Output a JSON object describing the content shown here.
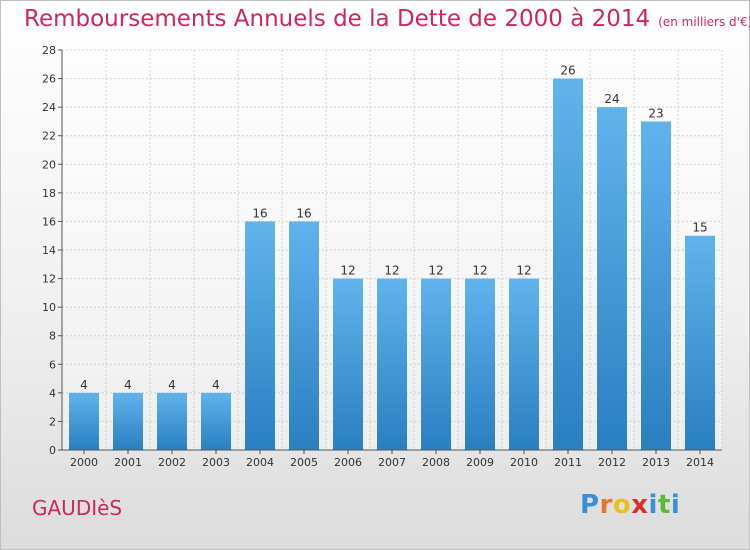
{
  "header": {
    "title": "Remboursements Annuels de la Dette de 2000 à 2014",
    "subtitle": "(en milliers d'€)"
  },
  "footer": {
    "commune": "GAUDIèS",
    "logo_letters": [
      "P",
      "r",
      "o",
      "x",
      "i",
      "t",
      "i"
    ],
    "logo_colors": [
      "#3b8ed8",
      "#e8742a",
      "#e8c21c",
      "#d8312c",
      "#3b8ed8",
      "#5cb83a",
      "#3b8ed8"
    ]
  },
  "colors": {
    "bar_light": "#62b3ec",
    "bar_dark": "#2a7fc0",
    "title": "#c8295a",
    "grid": "#d0d0d0"
  },
  "chart_data": {
    "type": "bar",
    "title": "Remboursements Annuels de la Dette de 2000 à 2014",
    "subtitle": "(en milliers d'€)",
    "xlabel": "",
    "ylabel": "",
    "categories": [
      "2000",
      "2001",
      "2002",
      "2003",
      "2004",
      "2005",
      "2006",
      "2007",
      "2008",
      "2009",
      "2010",
      "2011",
      "2012",
      "2013",
      "2014"
    ],
    "values": [
      4,
      4,
      4,
      4,
      16,
      16,
      12,
      12,
      12,
      12,
      12,
      26,
      24,
      23,
      15
    ],
    "ylim": [
      0,
      28
    ],
    "yticks": [
      0,
      2,
      4,
      6,
      8,
      10,
      12,
      14,
      16,
      18,
      20,
      22,
      24,
      26,
      28
    ],
    "grid": true,
    "data_labels": true
  }
}
